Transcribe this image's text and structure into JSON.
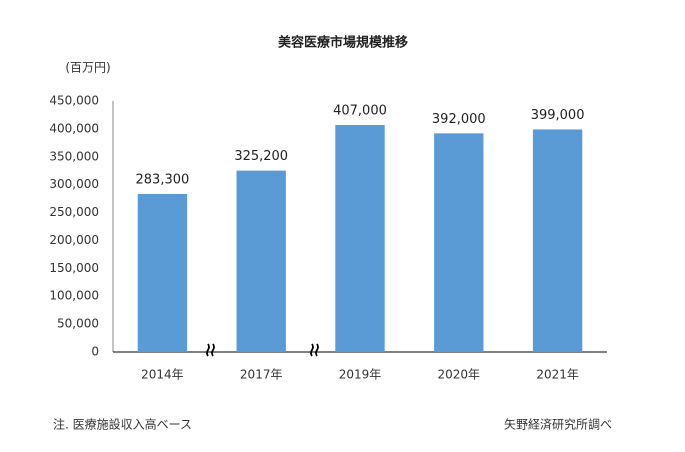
{
  "chart_data": {
    "type": "bar",
    "title": "美容医療市場規模推移",
    "y_unit": "(百万円)",
    "categories": [
      "2014年",
      "2017年",
      "2019年",
      "2020年",
      "2021年"
    ],
    "values": [
      283300,
      325200,
      407000,
      392000,
      399000
    ],
    "value_labels": [
      "283,300",
      "325,200",
      "407,000",
      "392,000",
      "399,000"
    ],
    "color": "#5b9bd5",
    "ylim": [
      0,
      450000
    ],
    "yticks": [
      0,
      {
        "value": 50000,
        "label": "50,000"
      },
      {
        "value": 100000,
        "label": "100,000"
      },
      {
        "value": 150000,
        "label": "150,000"
      },
      {
        "value": 200000,
        "label": "200,000"
      },
      {
        "value": 250000,
        "label": "250,000"
      },
      {
        "value": 300000,
        "label": "300,000"
      },
      {
        "value": 350000,
        "label": "350,000"
      },
      {
        "value": 400000,
        "label": "400,000"
      },
      {
        "value": 450000,
        "label": "450,000"
      }
    ],
    "grid": false,
    "note": "注. 医療施設収入高ベース",
    "source": "矢野経済研究所調べ"
  }
}
